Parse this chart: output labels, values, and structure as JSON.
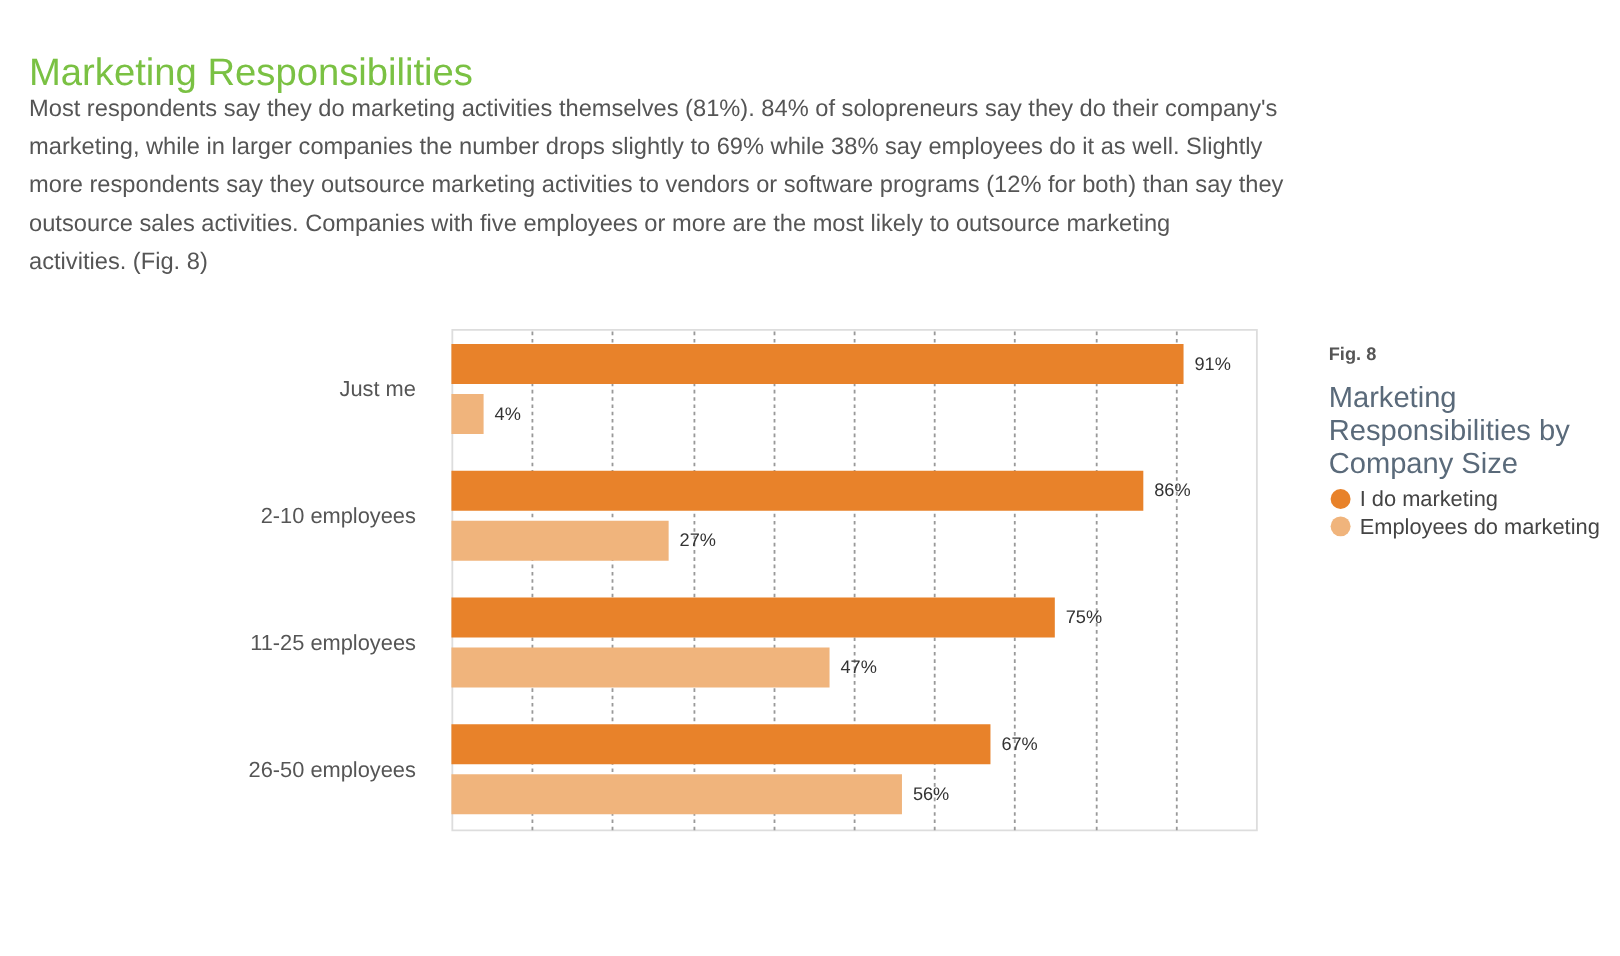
{
  "chart_data": {
    "type": "bar",
    "orientation": "horizontal",
    "title": "Marketing Responsibilities",
    "subtitle": "Most respondents say they do marketing activities themselves (81%). 84% of solopreneurs say they do their company's marketing, while in larger companies the number drops slightly to 69% while 38% say employees do it as well. Slightly more respondents say they outsource marketing activities to vendors or software programs (12% for both) than say they outsource sales activities. Companies with five employees or more are the most likely to outsource marketing activities. (Fig. 8)",
    "legend_title": "Marketing Responsibilities by Company Size",
    "annotations": [
      "Fig. 8"
    ],
    "categories": [
      "Just me",
      "2-10 employees",
      "11-25 employees",
      "26-50 employees"
    ],
    "series": [
      {
        "name": "I do marketing",
        "color": "#e8822a",
        "values": [
          91,
          86,
          75,
          67
        ],
        "value_labels": [
          "91%",
          "86%",
          "75%",
          "67%"
        ]
      },
      {
        "name": "Employees do marketing",
        "color": "#f0b47c",
        "values": [
          4,
          27,
          47,
          56
        ],
        "value_labels": [
          "4%",
          "27%",
          "47%",
          "56%"
        ]
      }
    ],
    "xlim": [
      0,
      100
    ],
    "xticks": [
      {
        "value": 10,
        "label": null
      },
      {
        "value": 20,
        "label": null
      },
      {
        "value": 30,
        "label": null
      },
      {
        "value": 40,
        "label": null
      },
      {
        "value": 50,
        "label": null
      },
      {
        "value": 60,
        "label": null
      },
      {
        "value": 70,
        "label": null
      },
      {
        "value": 80,
        "label": null
      },
      {
        "value": 90,
        "label": null
      }
    ],
    "grid": "x",
    "legend": "top right",
    "tick_labels": "y"
  }
}
